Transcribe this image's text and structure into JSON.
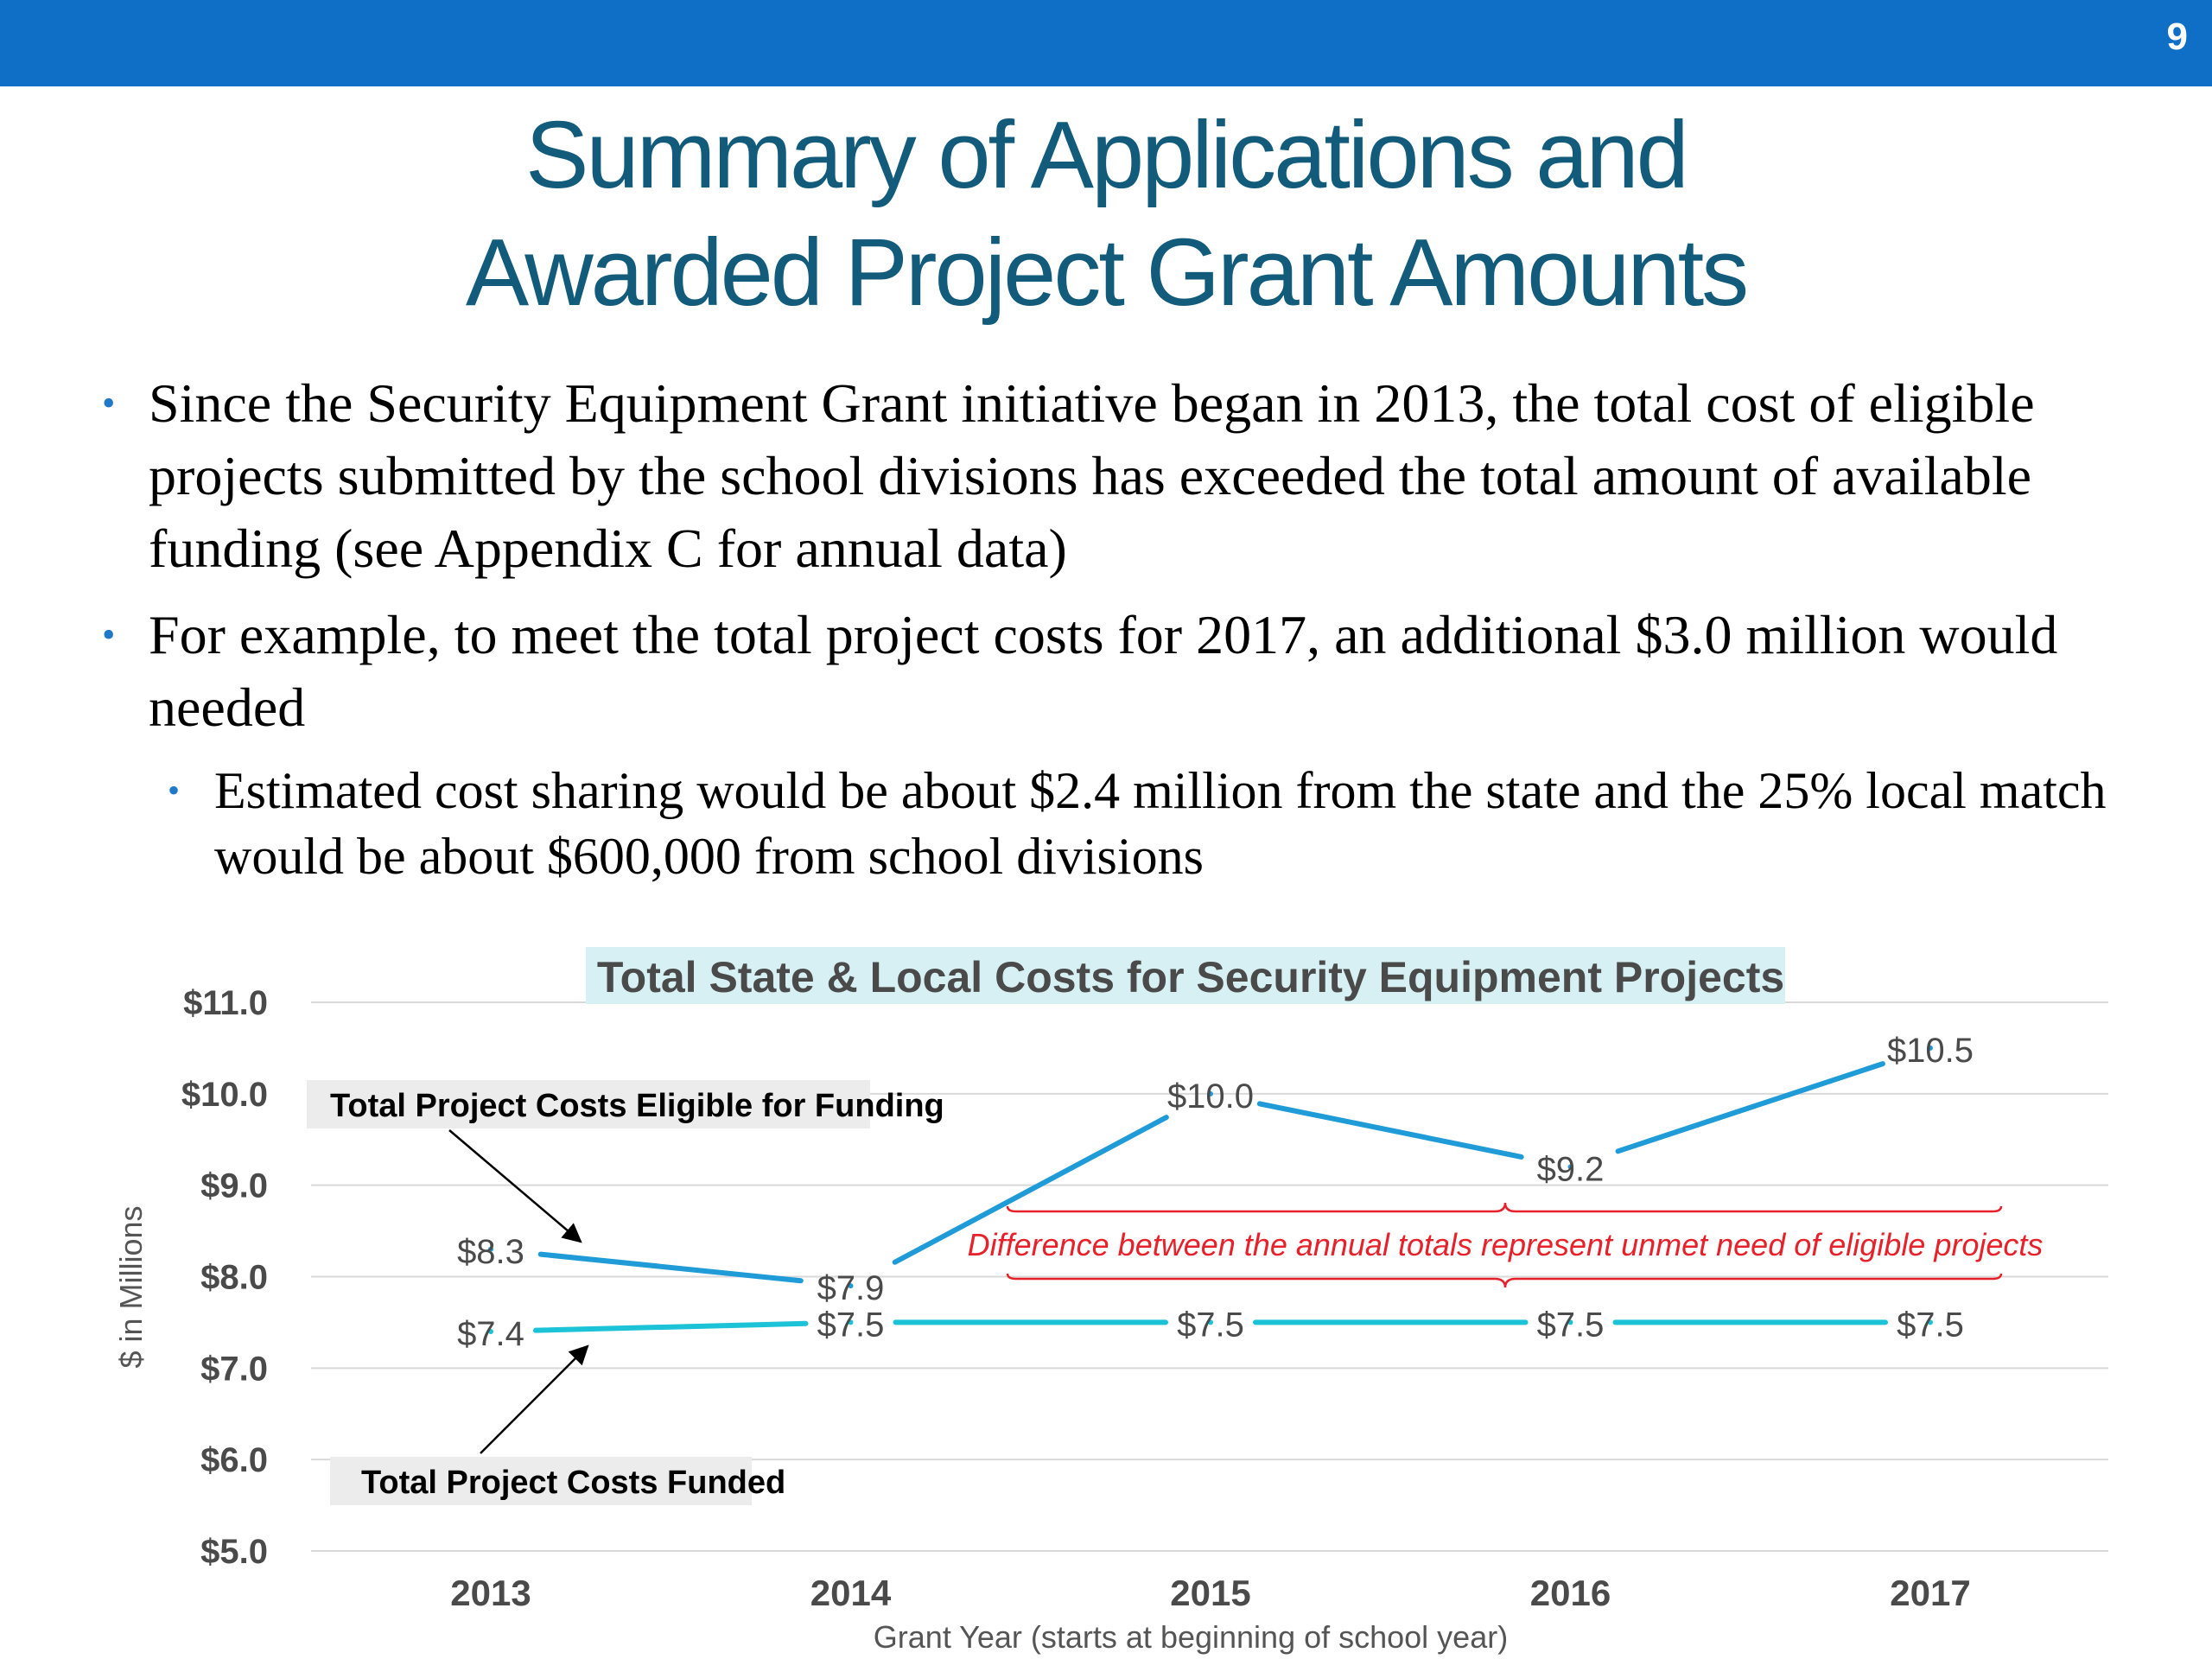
{
  "header": {
    "slide_number": "9"
  },
  "title": {
    "line1": "Summary of Applications and",
    "line2": "Awarded Project Grant Amounts"
  },
  "bullets": [
    "Since the Security Equipment Grant initiative began in 2013, the total cost of eligible projects submitted by the school divisions has exceeded the total amount of available funding (see Appendix C for annual data)",
    "For example, to meet the total project costs for 2017, an additional $3.0 million would needed"
  ],
  "sub_bullets": [
    "Estimated cost sharing would be about $2.4 million from the state and the 25% local match would be about $600,000 from school divisions"
  ],
  "colors": {
    "header_bar": "#0f6fc6",
    "title": "#125b7a",
    "eligible_line": "#1f9bd7",
    "funded_line": "#1cc3d7",
    "difference_annotation": "#e8202a"
  },
  "chart_data": {
    "type": "line",
    "title": "Total State & Local Costs for Security Equipment Projects",
    "xlabel": "Grant Year (starts at beginning of school year)",
    "ylabel": "$ in Millions",
    "categories": [
      "2013",
      "2014",
      "2015",
      "2016",
      "2017"
    ],
    "ylim": [
      5.0,
      11.0
    ],
    "y_ticks": [
      "$5.0",
      "$6.0",
      "$7.0",
      "$8.0",
      "$9.0",
      "$10.0",
      "$11.0"
    ],
    "grid": true,
    "series": [
      {
        "name": "Total Project Costs Eligible for Funding",
        "values": [
          8.3,
          7.9,
          10.0,
          9.2,
          10.5
        ],
        "labels": [
          "$8.3",
          "$7.9",
          "$10.0",
          "$9.2",
          "$10.5"
        ],
        "color": "#1f9bd7"
      },
      {
        "name": "Total Project Costs Funded",
        "values": [
          7.4,
          7.5,
          7.5,
          7.5,
          7.5
        ],
        "labels": [
          "$7.4",
          "$7.5",
          "$7.5",
          "$7.5",
          "$7.5"
        ],
        "color": "#1cc3d7"
      }
    ],
    "annotation": "Difference between the annual totals represent unmet need of eligible projects"
  }
}
